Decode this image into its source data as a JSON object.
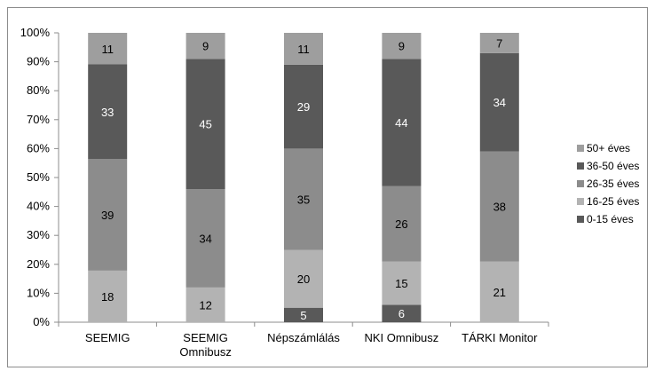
{
  "chart_data": {
    "type": "bar",
    "stacked": true,
    "percent": true,
    "categories": [
      "SEEMIG",
      "SEEMIG\nOmnibusz",
      "Népszámlálás",
      "NKI Omnibusz",
      "TÁRKI Monitor"
    ],
    "series": [
      {
        "name": "0-15 éves",
        "values": [
          0,
          0,
          5,
          6,
          0
        ],
        "color": "#595959"
      },
      {
        "name": "16-25 éves",
        "values": [
          18,
          12,
          20,
          15,
          21
        ],
        "color": "#b3b3b3"
      },
      {
        "name": "26-35 éves",
        "values": [
          39,
          34,
          35,
          26,
          38
        ],
        "color": "#8c8c8c"
      },
      {
        "name": "36-50 éves",
        "values": [
          33,
          45,
          29,
          44,
          34
        ],
        "color": "#595959"
      },
      {
        "name": "50+ éves",
        "values": [
          11,
          9,
          11,
          9,
          7
        ],
        "color": "#9e9e9e"
      }
    ],
    "y_ticks": [
      "0%",
      "10%",
      "20%",
      "30%",
      "40%",
      "50%",
      "60%",
      "70%",
      "80%",
      "90%",
      "100%"
    ],
    "ylim": [
      0,
      100
    ],
    "legend_position": "right",
    "legend_order": [
      "50+ éves",
      "36-50 éves",
      "26-35 éves",
      "16-25 éves",
      "0-15 éves"
    ],
    "grid": false
  }
}
